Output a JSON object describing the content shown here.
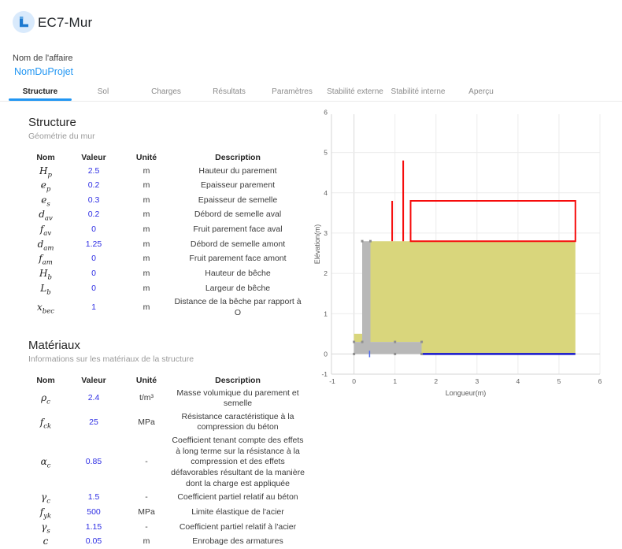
{
  "header": {
    "app_title": "EC7-Mur",
    "logo_icon": "retaining-wall-icon"
  },
  "project": {
    "label": "Nom de l'affaire",
    "value": "NomDuProjet"
  },
  "tabs": [
    {
      "label": "Structure",
      "active": true
    },
    {
      "label": "Sol",
      "active": false
    },
    {
      "label": "Charges",
      "active": false
    },
    {
      "label": "Résultats",
      "active": false
    },
    {
      "label": "Paramètres",
      "active": false
    },
    {
      "label": "Stabilité externe",
      "active": false
    },
    {
      "label": "Stabilité interne",
      "active": false
    },
    {
      "label": "Aperçu",
      "active": false
    }
  ],
  "accent_color": "#2196f3",
  "value_color": "#2e2ee4",
  "sections": {
    "structure": {
      "title": "Structure",
      "subtitle": "Géométrie du mur",
      "columns": [
        "Nom",
        "Valeur",
        "Unité",
        "Description"
      ],
      "rows": [
        {
          "name": {
            "base": "H",
            "sub": "p"
          },
          "value": "2.5",
          "unit": "m",
          "description": "Hauteur du parement"
        },
        {
          "name": {
            "base": "e",
            "sub": "p"
          },
          "value": "0.2",
          "unit": "m",
          "description": "Epaisseur parement"
        },
        {
          "name": {
            "base": "e",
            "sub": "s"
          },
          "value": "0.3",
          "unit": "m",
          "description": "Epaisseur de semelle"
        },
        {
          "name": {
            "base": "d",
            "sub": "av"
          },
          "value": "0.2",
          "unit": "m",
          "description": "Débord de semelle aval"
        },
        {
          "name": {
            "base": "f",
            "sub": "av"
          },
          "value": "0",
          "unit": "m",
          "description": "Fruit parement face aval"
        },
        {
          "name": {
            "base": "d",
            "sub": "am"
          },
          "value": "1.25",
          "unit": "m",
          "description": "Débord de semelle amont"
        },
        {
          "name": {
            "base": "f",
            "sub": "am"
          },
          "value": "0",
          "unit": "m",
          "description": "Fruit parement face amont"
        },
        {
          "name": {
            "base": "H",
            "sub": "b"
          },
          "value": "0",
          "unit": "m",
          "description": "Hauteur de bêche"
        },
        {
          "name": {
            "base": "L",
            "sub": "b"
          },
          "value": "0",
          "unit": "m",
          "description": "Largeur de bêche"
        },
        {
          "name": {
            "base": "x",
            "sub": "bec"
          },
          "value": "1",
          "unit": "m",
          "description": "Distance de la bêche par rapport à O"
        }
      ]
    },
    "materiaux": {
      "title": "Matériaux",
      "subtitle": "Informations sur les matériaux de la structure",
      "columns": [
        "Nom",
        "Valeur",
        "Unité",
        "Description"
      ],
      "rows": [
        {
          "name": {
            "base": "ρ",
            "sub": "c"
          },
          "value": "2.4",
          "unit": "t/m³",
          "description": "Masse volumique du parement et semelle"
        },
        {
          "name": {
            "base": "f",
            "sub": "ck"
          },
          "value": "25",
          "unit": "MPa",
          "description": "Résistance caractéristique à la compression du béton"
        },
        {
          "name": {
            "base": "α",
            "sub": "c"
          },
          "value": "0.85",
          "unit": "-",
          "description": "Coefficient tenant compte des effets à long terme sur la résistance à la compression et des effets défavorables résultant de la manière dont la charge est appliquée"
        },
        {
          "name": {
            "base": "γ",
            "sub": "c"
          },
          "value": "1.5",
          "unit": "-",
          "description": "Coefficient partiel relatif au béton"
        },
        {
          "name": {
            "base": "f",
            "sub": "yk"
          },
          "value": "500",
          "unit": "MPa",
          "description": "Limite élastique de l'acier"
        },
        {
          "name": {
            "base": "γ",
            "sub": "s"
          },
          "value": "1.15",
          "unit": "-",
          "description": "Coefficient partiel relatif à l'acier"
        },
        {
          "name": {
            "base": "c",
            "sub": ""
          },
          "value": "0.05",
          "unit": "m",
          "description": "Enrobage des armatures"
        }
      ]
    }
  },
  "chart_data": {
    "type": "area",
    "title": "",
    "xlabel": "Longueur(m)",
    "ylabel": "Elévation(m)",
    "xlim": [
      -1,
      6
    ],
    "ylim": [
      -1,
      6
    ],
    "xticks": [
      -1,
      0,
      1,
      2,
      3,
      4,
      5,
      6
    ],
    "yticks": [
      -1,
      0,
      1,
      2,
      3,
      4,
      5,
      6
    ],
    "grid": true,
    "legend": false,
    "x_render_range": [
      -0.55,
      6.0
    ],
    "y_render_range": [
      -0.5,
      5.95
    ],
    "grid_color": "#ececec",
    "zeroline_color": "#d8d8d8",
    "border_color": "#d6d6d6",
    "series": [
      {
        "name": "sol-amont",
        "type": "polygon",
        "fill": "#d9d67c",
        "points": [
          [
            0.4,
            2.8
          ],
          [
            5.4,
            2.8
          ],
          [
            5.4,
            0
          ],
          [
            1.65,
            0
          ],
          [
            1.65,
            0.3
          ],
          [
            0.4,
            0.3
          ]
        ]
      },
      {
        "name": "sol-aval",
        "type": "polygon",
        "fill": "#d9d67c",
        "points": [
          [
            0,
            0.3
          ],
          [
            0.2,
            0.3
          ],
          [
            0.2,
            0.5
          ],
          [
            0,
            0.5
          ]
        ]
      },
      {
        "name": "mur-beton",
        "type": "polygon",
        "fill": "#b8b8b8",
        "points": [
          [
            0,
            0
          ],
          [
            1.65,
            0
          ],
          [
            1.65,
            0.3
          ],
          [
            0.4,
            0.3
          ],
          [
            0.4,
            2.8
          ],
          [
            0.2,
            2.8
          ],
          [
            0.2,
            0.3
          ],
          [
            0,
            0.3
          ]
        ]
      },
      {
        "name": "ligne-assise",
        "type": "line",
        "stroke": "#1515cf",
        "width": 2.5,
        "points": [
          [
            1.65,
            0
          ],
          [
            5.4,
            0
          ]
        ]
      },
      {
        "name": "repere-origine",
        "type": "line",
        "stroke": "#4f6bed",
        "width": 1.5,
        "points": [
          [
            0.38,
            -0.08
          ],
          [
            0.38,
            0.08
          ]
        ]
      },
      {
        "name": "charge-ligne-1",
        "type": "line",
        "stroke": "#f60c0c",
        "width": 2,
        "points": [
          [
            0.93,
            2.8
          ],
          [
            0.93,
            3.8
          ]
        ]
      },
      {
        "name": "charge-ligne-2",
        "type": "line",
        "stroke": "#f60c0c",
        "width": 2,
        "points": [
          [
            1.2,
            2.8
          ],
          [
            1.2,
            4.8
          ]
        ]
      },
      {
        "name": "charge-repartie",
        "type": "polygon",
        "fill": "none",
        "stroke": "#f60c0c",
        "width": 2,
        "points": [
          [
            1.38,
            2.8
          ],
          [
            1.38,
            3.8
          ],
          [
            5.4,
            3.8
          ],
          [
            5.4,
            2.8
          ]
        ]
      }
    ],
    "vertex_markers": {
      "color": "#8f8f8f",
      "size": 3,
      "points": [
        [
          0,
          0
        ],
        [
          0,
          0.3
        ],
        [
          0.2,
          0.3
        ],
        [
          1,
          0.3
        ],
        [
          1.65,
          0.3
        ],
        [
          1,
          0
        ],
        [
          1.65,
          0
        ],
        [
          0.2,
          2.8
        ],
        [
          0.4,
          2.8
        ]
      ]
    }
  }
}
